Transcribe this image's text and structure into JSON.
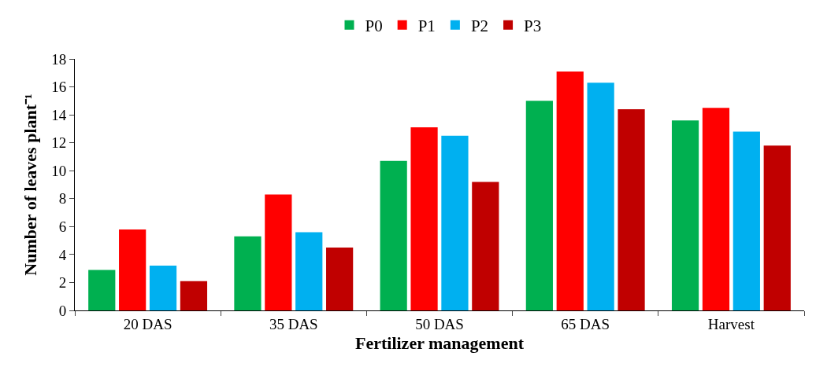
{
  "chart_data": {
    "type": "bar",
    "xlabel": "Fertilizer management",
    "ylabel": "Number of leaves plant⁻¹",
    "categories": [
      "20 DAS",
      "35 DAS",
      "50 DAS",
      "65 DAS",
      "Harvest"
    ],
    "series": [
      {
        "name": "P0",
        "color": "#00b050",
        "values": [
          2.9,
          5.3,
          10.7,
          15.0,
          13.6
        ]
      },
      {
        "name": "P1",
        "color": "#ff0000",
        "values": [
          5.8,
          8.3,
          13.1,
          17.1,
          14.5
        ]
      },
      {
        "name": "P2",
        "color": "#00b0f0",
        "values": [
          3.2,
          5.6,
          12.5,
          16.3,
          12.8
        ]
      },
      {
        "name": "P3",
        "color": "#c00000",
        "values": [
          2.1,
          4.5,
          9.2,
          14.4,
          11.8
        ]
      }
    ],
    "ylim": [
      0,
      18
    ],
    "yticks": [
      0,
      2,
      4,
      6,
      8,
      10,
      12,
      14,
      16,
      18
    ],
    "grid": false,
    "legend": "top"
  }
}
